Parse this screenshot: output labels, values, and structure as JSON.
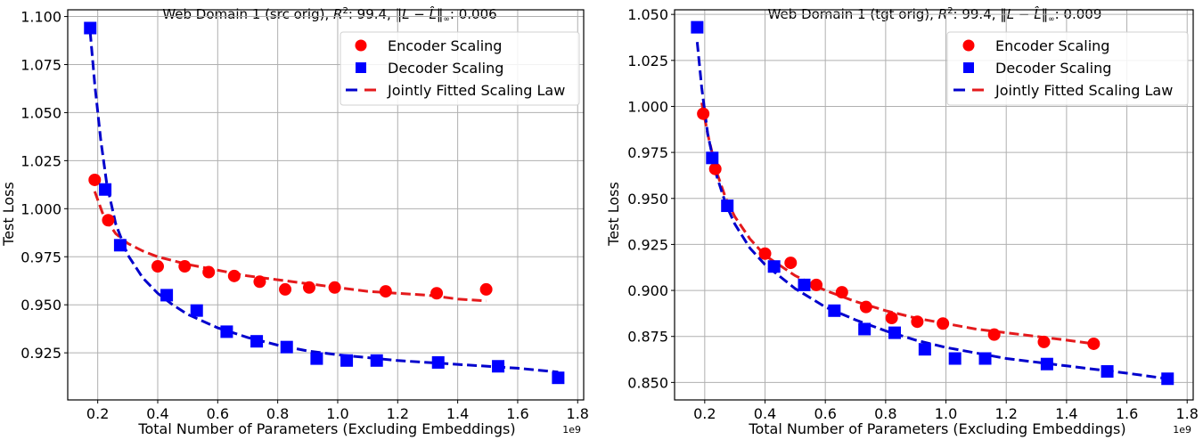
{
  "chart_data": [
    {
      "type": "scatter",
      "title_prefix": "Web Domain 1 (src orig), ",
      "title_r2_label": "R",
      "title_r2_sup": "2",
      "title_r2_value": ": 99.4, ",
      "title_norm_label": "‖L − L̂‖",
      "title_norm_sub": "∞",
      "title_norm_value": ": 0.006",
      "xlabel": "Total Number of Parameters (Excluding Embeddings)",
      "ylabel": "Test Loss",
      "x_offset_label": "1e9",
      "xlim": [
        0.1,
        1.82
      ],
      "ylim": [
        0.9005,
        1.1035
      ],
      "xticks": [
        0.2,
        0.4,
        0.6,
        0.8,
        1.0,
        1.2,
        1.4,
        1.6,
        1.8
      ],
      "xtick_labels": [
        "0.2",
        "0.4",
        "0.6",
        "0.8",
        "1.0",
        "1.2",
        "1.4",
        "1.6",
        "1.8"
      ],
      "yticks": [
        0.925,
        0.95,
        0.975,
        1.0,
        1.025,
        1.05,
        1.075,
        1.1
      ],
      "ytick_labels": [
        "0.925",
        "0.950",
        "0.975",
        "1.000",
        "1.025",
        "1.050",
        "1.075",
        "1.100"
      ],
      "grid": true,
      "legend_position": "top-right",
      "legend": [
        "Encoder Scaling",
        "Decoder Scaling",
        "Jointly Fitted Scaling Law"
      ],
      "series": [
        {
          "name": "Encoder Scaling",
          "marker": "circle",
          "color": "#ff0000",
          "x": [
            0.19,
            0.235,
            0.4,
            0.49,
            0.57,
            0.655,
            0.74,
            0.825,
            0.905,
            0.99,
            1.16,
            1.33,
            1.495
          ],
          "y": [
            1.015,
            0.994,
            0.97,
            0.97,
            0.967,
            0.965,
            0.962,
            0.958,
            0.959,
            0.959,
            0.957,
            0.956,
            0.958
          ]
        },
        {
          "name": "Decoder Scaling",
          "marker": "square",
          "color": "#0000ff",
          "x": [
            0.175,
            0.225,
            0.275,
            0.43,
            0.53,
            0.63,
            0.73,
            0.83,
            0.93,
            1.03,
            1.13,
            1.335,
            1.535,
            1.735
          ],
          "y": [
            1.094,
            1.01,
            0.981,
            0.955,
            0.947,
            0.936,
            0.931,
            0.928,
            0.922,
            0.921,
            0.921,
            0.92,
            0.918,
            0.912
          ]
        }
      ],
      "fits": [
        {
          "name": "Encoder fit",
          "color": "#e41a1c",
          "x": [
            0.19,
            0.22,
            0.26,
            0.3,
            0.35,
            0.4,
            0.5,
            0.6,
            0.7,
            0.8,
            0.9,
            1.0,
            1.1,
            1.2,
            1.3,
            1.4,
            1.495
          ],
          "y": [
            1.009,
            0.996,
            0.987,
            0.982,
            0.978,
            0.975,
            0.971,
            0.968,
            0.965,
            0.963,
            0.961,
            0.959,
            0.957,
            0.956,
            0.955,
            0.953,
            0.952
          ]
        },
        {
          "name": "Decoder fit",
          "color": "#0000cc",
          "x": [
            0.175,
            0.19,
            0.21,
            0.23,
            0.26,
            0.3,
            0.35,
            0.4,
            0.45,
            0.5,
            0.6,
            0.7,
            0.8,
            0.9,
            1.0,
            1.2,
            1.4,
            1.6,
            1.735
          ],
          "y": [
            1.092,
            1.065,
            1.036,
            1.013,
            0.992,
            0.976,
            0.964,
            0.956,
            0.95,
            0.945,
            0.938,
            0.933,
            0.929,
            0.926,
            0.924,
            0.921,
            0.919,
            0.917,
            0.915
          ]
        }
      ]
    },
    {
      "type": "scatter",
      "title_prefix": "Web Domain 1 (tgt orig), ",
      "title_r2_label": "R",
      "title_r2_sup": "2",
      "title_r2_value": ": 99.4, ",
      "title_norm_label": "‖L − L̂‖",
      "title_norm_sub": "∞",
      "title_norm_value": ": 0.009",
      "xlabel": "Total Number of Parameters (Excluding Embeddings)",
      "ylabel": "Test Loss",
      "x_offset_label": "1e9",
      "xlim": [
        0.1,
        1.82
      ],
      "ylim": [
        0.8405,
        1.0525
      ],
      "xticks": [
        0.2,
        0.4,
        0.6,
        0.8,
        1.0,
        1.2,
        1.4,
        1.6,
        1.8
      ],
      "xtick_labels": [
        "0.2",
        "0.4",
        "0.6",
        "0.8",
        "1.0",
        "1.2",
        "1.4",
        "1.6",
        "1.8"
      ],
      "yticks": [
        0.85,
        0.875,
        0.9,
        0.925,
        0.95,
        0.975,
        1.0,
        1.025,
        1.05
      ],
      "ytick_labels": [
        "0.850",
        "0.875",
        "0.900",
        "0.925",
        "0.950",
        "0.975",
        "1.000",
        "1.025",
        "1.050"
      ],
      "grid": true,
      "legend_position": "top-right",
      "legend": [
        "Encoder Scaling",
        "Decoder Scaling",
        "Jointly Fitted Scaling Law"
      ],
      "series": [
        {
          "name": "Encoder Scaling",
          "marker": "circle",
          "color": "#ff0000",
          "x": [
            0.195,
            0.235,
            0.4,
            0.485,
            0.57,
            0.655,
            0.735,
            0.82,
            0.905,
            0.99,
            1.16,
            1.325,
            1.49
          ],
          "y": [
            0.996,
            0.966,
            0.92,
            0.915,
            0.903,
            0.899,
            0.891,
            0.885,
            0.883,
            0.882,
            0.876,
            0.872,
            0.871
          ]
        },
        {
          "name": "Decoder Scaling",
          "marker": "square",
          "color": "#0000ff",
          "x": [
            0.175,
            0.225,
            0.275,
            0.43,
            0.53,
            0.63,
            0.73,
            0.83,
            0.93,
            1.03,
            1.13,
            1.335,
            1.535,
            1.735
          ],
          "y": [
            1.043,
            0.972,
            0.946,
            0.913,
            0.903,
            0.889,
            0.879,
            0.877,
            0.868,
            0.863,
            0.863,
            0.86,
            0.856,
            0.852
          ]
        }
      ],
      "fits": [
        {
          "name": "Encoder fit",
          "color": "#e41a1c",
          "x": [
            0.19,
            0.21,
            0.24,
            0.27,
            0.3,
            0.35,
            0.4,
            0.5,
            0.6,
            0.7,
            0.8,
            0.9,
            1.0,
            1.1,
            1.2,
            1.3,
            1.4,
            1.49
          ],
          "y": [
            1.002,
            0.985,
            0.964,
            0.95,
            0.94,
            0.928,
            0.919,
            0.908,
            0.9,
            0.894,
            0.889,
            0.885,
            0.882,
            0.879,
            0.877,
            0.875,
            0.873,
            0.871
          ]
        },
        {
          "name": "Decoder fit",
          "color": "#0000cc",
          "x": [
            0.175,
            0.19,
            0.21,
            0.24,
            0.27,
            0.3,
            0.35,
            0.4,
            0.5,
            0.6,
            0.7,
            0.8,
            0.9,
            1.0,
            1.2,
            1.4,
            1.6,
            1.735
          ],
          "y": [
            1.035,
            1.01,
            0.985,
            0.962,
            0.947,
            0.936,
            0.923,
            0.914,
            0.901,
            0.891,
            0.884,
            0.878,
            0.873,
            0.869,
            0.863,
            0.859,
            0.855,
            0.852
          ]
        }
      ]
    }
  ]
}
